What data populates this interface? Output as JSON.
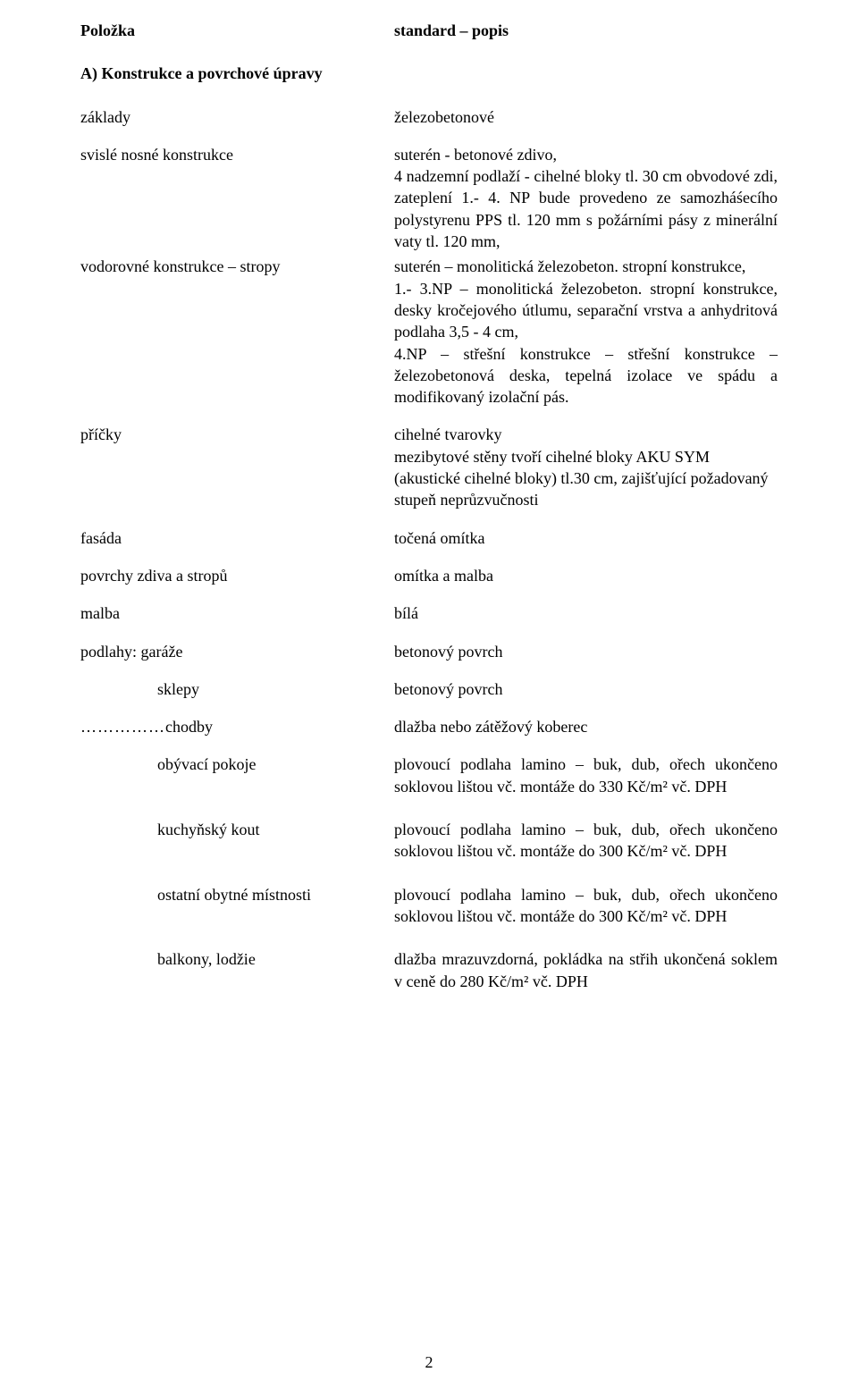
{
  "header": {
    "left": "Položka",
    "right": "standard – popis"
  },
  "sectionA": "A) Konstrukce a povrchové úpravy",
  "zaklady": {
    "l": "základy",
    "r": "železobetonové"
  },
  "svisle": {
    "l": "svislé nosné konstrukce",
    "r": "suterén - betonové zdivo,\n4 nadzemní podlaží - cihelné bloky tl. 30 cm obvodové zdi, zateplení 1.- 4. NP bude provedeno ze samozháśecího polystyrenu PPS tl. 120 mm s požárními pásy z minerální vaty tl. 120 mm,"
  },
  "vodorovne": {
    "l": "vodorovné konstrukce – stropy",
    "r": "suterén – monolitická železobeton. stropní konstrukce,\n1.- 3.NP – monolitická železobeton. stropní konstrukce, desky kročejového útlumu, separační vrstva a anhydritová podlaha 3,5 - 4 cm,\n4.NP – střešní konstrukce – střešní konstrukce – železobetonová deska, tepelná izolace ve spádu a modifikovaný izolační pás."
  },
  "pricky": {
    "l": "příčky",
    "r": "cihelné tvarovky\nmezibytové stěny tvoří cihelné bloky AKU SYM (akustické cihelné bloky) tl.30 cm, zajišťující požadovaný stupeň neprůzvučnosti"
  },
  "fasada": {
    "l": "fasáda",
    "r": "točená omítka"
  },
  "povrchy": {
    "l": "povrchy zdiva a stropů",
    "r": "omítka a malba"
  },
  "malba": {
    "l": "malba",
    "r": "bílá"
  },
  "podlahy": {
    "garaze_l": "podlahy:   garáže",
    "garaze_r": "betonový povrch",
    "sklepy_l": "sklepy",
    "sklepy_r": "betonový povrch",
    "chodby_l": "chodby",
    "chodby_dots": "……………",
    "chodby_r": "dlažba nebo zátěžový koberec",
    "obyvaci_l": "obývací pokoje",
    "obyvaci_r": "plovoucí podlaha lamino – buk, dub, ořech ukončeno soklovou lištou vč. montáže do 330 Kč/m² vč. DPH",
    "kuchyn_l": "kuchyňský kout",
    "kuchyn_r": "plovoucí podlaha lamino – buk, dub, ořech ukončeno soklovou lištou vč. montáže do 300 Kč/m² vč. DPH",
    "ostatni_l": "ostatní obytné místnosti",
    "ostatni_r": "plovoucí podlaha lamino – buk, dub, ořech ukončeno soklovou lištou vč. montáže do 300 Kč/m² vč. DPH",
    "balkony_l": "balkony, lodžie",
    "balkony_r": "dlažba mrazuvzdorná, pokládka na střih ukončená soklem v ceně do 280 Kč/m² vč. DPH"
  },
  "pagenum": "2"
}
